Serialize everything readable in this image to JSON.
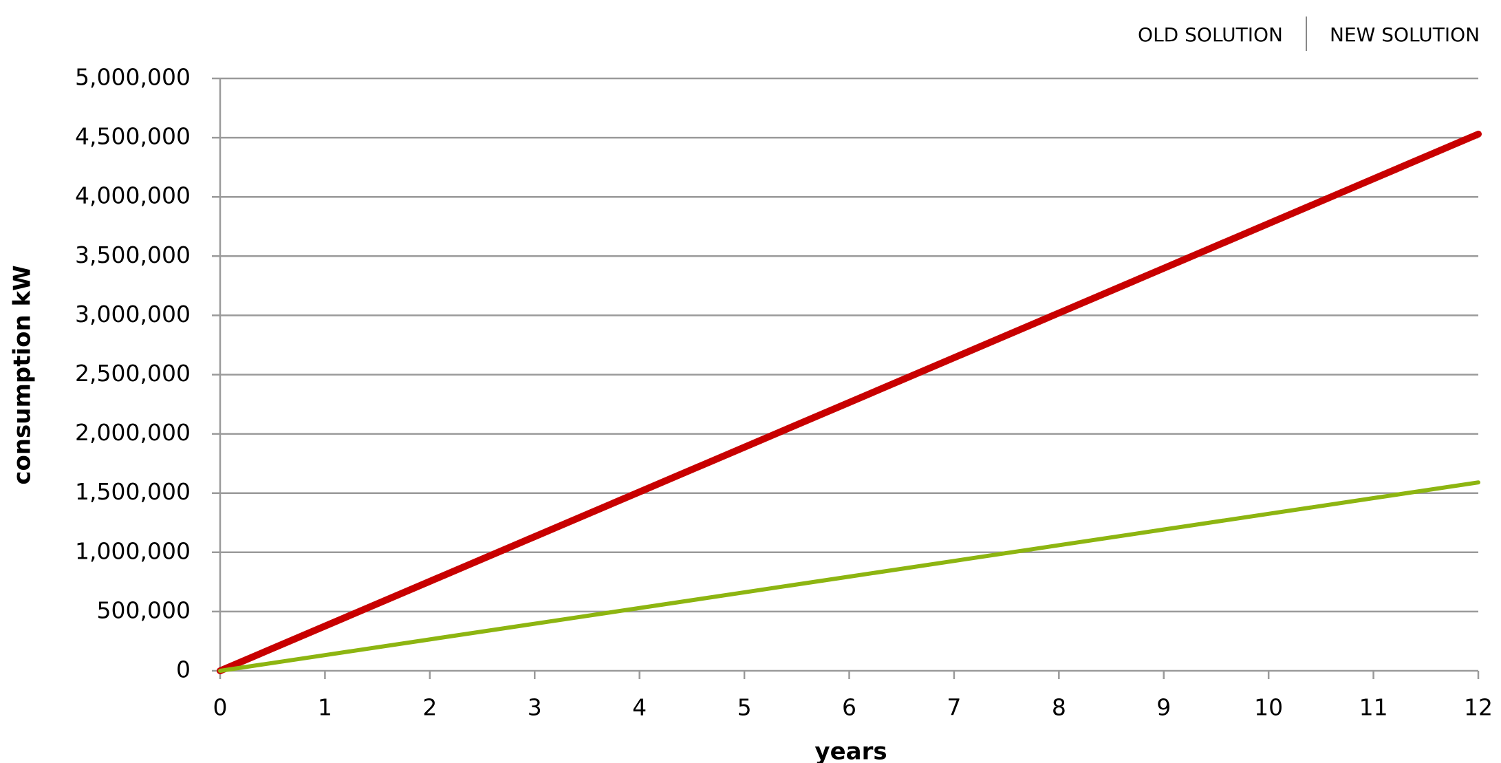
{
  "chart_data": {
    "type": "line",
    "x_label": "years",
    "y_label": "consumption kW",
    "x": [
      0,
      1,
      2,
      3,
      4,
      5,
      6,
      7,
      8,
      9,
      10,
      11,
      12
    ],
    "series": [
      {
        "name": "OLD SOLUTION",
        "color": "#c80000",
        "values": [
          0,
          377500,
          755000,
          1132500,
          1510000,
          1887500,
          2265000,
          2642500,
          3020000,
          3397500,
          3775000,
          4152500,
          4530000
        ]
      },
      {
        "name": "NEW SOLUTION",
        "color": "#8db511",
        "values": [
          0,
          132500,
          265000,
          397500,
          530000,
          662500,
          795000,
          927500,
          1060000,
          1192500,
          1325000,
          1457500,
          1590000
        ]
      }
    ],
    "xlim": [
      0,
      12
    ],
    "xticks": [
      0,
      1,
      2,
      3,
      4,
      5,
      6,
      7,
      8,
      9,
      10,
      11,
      12
    ],
    "ylim": [
      0,
      5000000
    ],
    "yticks": [
      0,
      {
        "value": 500000,
        "label": "500,000"
      },
      {
        "value": 1000000,
        "label": "1,000,000"
      },
      {
        "value": 1500000,
        "label": "1,500,000"
      },
      {
        "value": 2000000,
        "label": "2,000,000"
      },
      {
        "value": 2500000,
        "label": "2,500,000"
      },
      {
        "value": 3000000,
        "label": "3,000,000"
      },
      {
        "value": 3500000,
        "label": "3,500,000"
      },
      {
        "value": 4000000,
        "label": "4,000,000"
      },
      {
        "value": 4500000,
        "label": "4,500,000"
      },
      {
        "value": 5000000,
        "label": "5,000,000"
      }
    ],
    "grid": true,
    "legend": "top-right"
  }
}
